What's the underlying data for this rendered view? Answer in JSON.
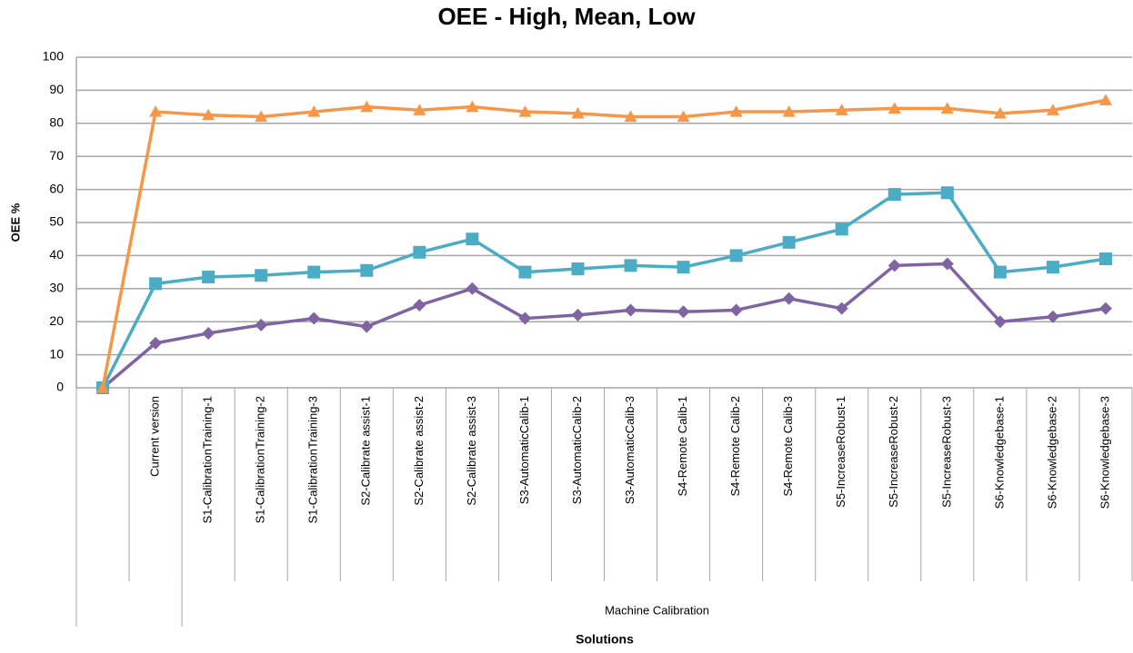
{
  "chart_data": {
    "type": "line",
    "title": "OEE - High, Mean, Low",
    "y_label": "OEE %",
    "x_label": "Solutions",
    "group_label": "Machine Calibration",
    "categories": [
      null,
      "Current version",
      "S1-CalibrationTraining-1",
      "S1-CalibrationTraining-2",
      "S1-CalibrationTraining-3",
      "S2-Calibrate assist-1",
      "S2-Calibrate assist-2",
      "S2-Calibrate assist-3",
      "S3-AutomaticCalib-1",
      "S3-AutomaticCalib-2",
      "S3-AutomaticCalib-3",
      "S4-Remote Calib-1",
      "S4-Remote Calib-2",
      "S4-Remote Calib-3",
      "S5-IncreaseRobust-1",
      "S5-IncreaseRobust-2",
      "S5-IncreaseRobust-3",
      "S6-Knowledgebase-1",
      "S6-Knowledgebase-2",
      "S6-Knowledgebase-3"
    ],
    "series": [
      {
        "color": "#f79646",
        "marker": "triangle",
        "values": [
          0,
          83.5,
          82.5,
          82,
          83.5,
          85,
          84,
          85,
          83.5,
          83,
          82,
          82,
          83.5,
          83.5,
          84,
          84.5,
          84.5,
          83,
          84,
          87
        ]
      },
      {
        "color": "#4bacc6",
        "marker": "square",
        "values": [
          0,
          31.5,
          33.5,
          34,
          35,
          35.5,
          41,
          45,
          35,
          36,
          37,
          36.5,
          40,
          44,
          48,
          58.5,
          59,
          35,
          36.5,
          39
        ]
      },
      {
        "color": "#8064a2",
        "marker": "diamond",
        "values": [
          0,
          13.5,
          16.5,
          19,
          21,
          18.5,
          25,
          30,
          21,
          22,
          23.5,
          23,
          23.5,
          27,
          24,
          37,
          37.5,
          20,
          21.5,
          24
        ]
      }
    ],
    "ylim": [
      0,
      100
    ],
    "yticks": [
      0,
      10,
      20,
      30,
      40,
      50,
      60,
      70,
      80,
      90,
      100
    ],
    "grid": true
  }
}
